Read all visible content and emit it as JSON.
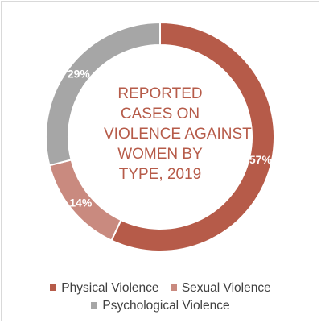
{
  "chart_data": {
    "type": "pie",
    "style": "donut",
    "title": "REPORTED CASES ON VIOLENCE AGAINST WOMEN BY TYPE, 2019",
    "title_lines": [
      "REPORTED",
      "CASES ON",
      "VIOLENCE AGAINST",
      "WOMEN BY",
      "TYPE, 2019"
    ],
    "legend_position": "bottom",
    "slices": [
      {
        "name": "Physical Violence",
        "value": 57,
        "label": "57%",
        "color": "#b65b49"
      },
      {
        "name": "Sexual Violence",
        "value": 14,
        "label": "14%",
        "color": "#c98a7f"
      },
      {
        "name": "Psychological Violence",
        "value": 29,
        "label": "29%",
        "color": "#a6a6a6"
      }
    ]
  }
}
